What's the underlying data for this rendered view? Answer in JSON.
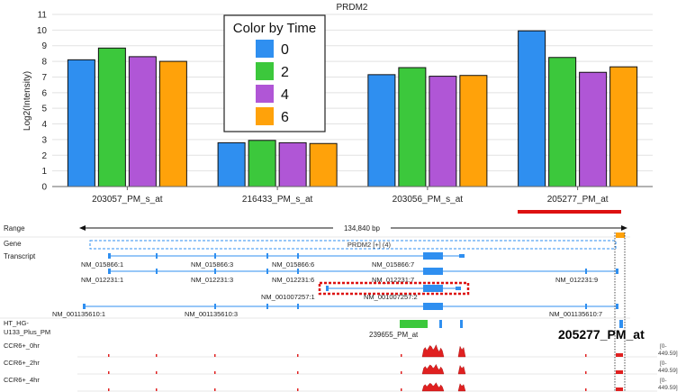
{
  "chart_data": {
    "type": "bar",
    "title": "PRDM2",
    "ylabel": "Log2(Intensity)",
    "xlabel": "",
    "ylim": [
      0,
      11
    ],
    "yticks": [
      0,
      1,
      2,
      3,
      4,
      5,
      6,
      7,
      8,
      9,
      10,
      11
    ],
    "grid": true,
    "categories": [
      "203057_PM_s_at",
      "216433_PM_s_at",
      "203056_PM_s_at",
      "205277_PM_at"
    ],
    "legend": {
      "title": "Color by Time",
      "placement": "top-center"
    },
    "series": [
      {
        "name": "0",
        "color": "#2f8ff0",
        "values": [
          8.1,
          2.8,
          7.15,
          9.95
        ]
      },
      {
        "name": "2",
        "color": "#3cc83c",
        "values": [
          8.85,
          2.95,
          7.6,
          8.25
        ]
      },
      {
        "name": "4",
        "color": "#b056d6",
        "values": [
          8.3,
          2.8,
          7.05,
          7.3
        ]
      },
      {
        "name": "6",
        "color": "#ffa20a",
        "values": [
          8.0,
          2.75,
          7.1,
          7.65
        ]
      }
    ],
    "highlight_category": "205277_PM_at",
    "highlight_color": "#dd1111"
  },
  "browser": {
    "range_label": "Range",
    "range_value": "134,840 bp",
    "gene_label": "Gene",
    "gene_name": "PRDM2 [+] (4)",
    "transcript_label": "Transcript",
    "transcripts": [
      "NM_015866:1",
      "NM_015866:3",
      "NM_015866:6",
      "NM_015866:7",
      "NM_012231:1",
      "NM_012231:3",
      "NM_012231:6",
      "NM_012231:7",
      "NM_012231:9",
      "NM_001007257:1",
      "NM_001007257:2",
      "NM_001135610:1",
      "NM_001135610:3",
      "NM_001135610:7"
    ],
    "probeset_label_1": "HT_HG-",
    "probeset_label_2": "U133_Plus_PM",
    "probeset_name": "239655_PM_at",
    "probe_callout": "205277_PM_at",
    "tracks": [
      {
        "label": "CCR6+_0hr",
        "range": "[0-449.59]"
      },
      {
        "label": "CCR6+_2hr",
        "range": "[0-449.59]"
      },
      {
        "label": "CCR6+_4hr",
        "range": "[0-449.59]"
      }
    ],
    "colors": {
      "feature": "#2f8ff0",
      "coverage": "#e02020",
      "probeset": "#3cc83c",
      "highlight": "#dd1111"
    }
  }
}
